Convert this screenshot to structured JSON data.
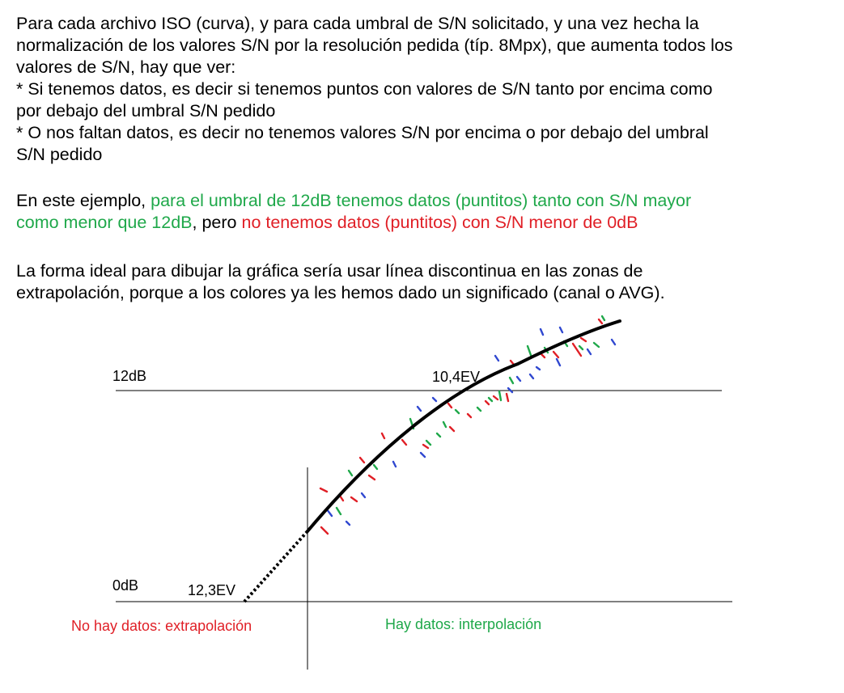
{
  "text": {
    "p1_lines": [
      "Para cada archivo ISO (curva), y para cada umbral de S/N solicitado, y una vez hecha la",
      "normalización de los valores S/N por la resolución pedida (típ. 8Mpx), que aumenta todos los",
      "valores de S/N, hay que ver:",
      "* Si tenemos datos, es decir si tenemos puntos con valores de S/N tanto por encima como",
      "por debajo del umbral S/N pedido",
      "* O nos faltan datos, es decir no tenemos valores S/N por encima o por debajo del umbral",
      "S/N pedido"
    ],
    "p2_prefix": "En este ejemplo, ",
    "p2_green_line1": "para el umbral de 12dB tenemos datos (puntitos) tanto con S/N mayor",
    "p2_green_line2": "como menor que 12dB",
    "p2_mid": ", pero ",
    "p2_red": "no tenemos datos (puntitos) con S/N menor de 0dB",
    "p3_lines": [
      "La forma ideal para dibujar la gráfica sería usar línea discontinua en las zonas de",
      "extrapolación, porque a los colores ya les hemos dado un significado (canal o AVG)."
    ]
  },
  "diagram": {
    "label_12db": "12dB",
    "label_0db": "0dB",
    "label_10_4ev": "10,4EV",
    "label_12_3ev": "12,3EV",
    "label_no_data": "No hay datos: extrapolación",
    "label_data": "Hay datos: interpolación"
  },
  "colors": {
    "green": "#1fa84a",
    "red": "#e01f26",
    "blue": "#3048d0",
    "black": "#000000"
  }
}
